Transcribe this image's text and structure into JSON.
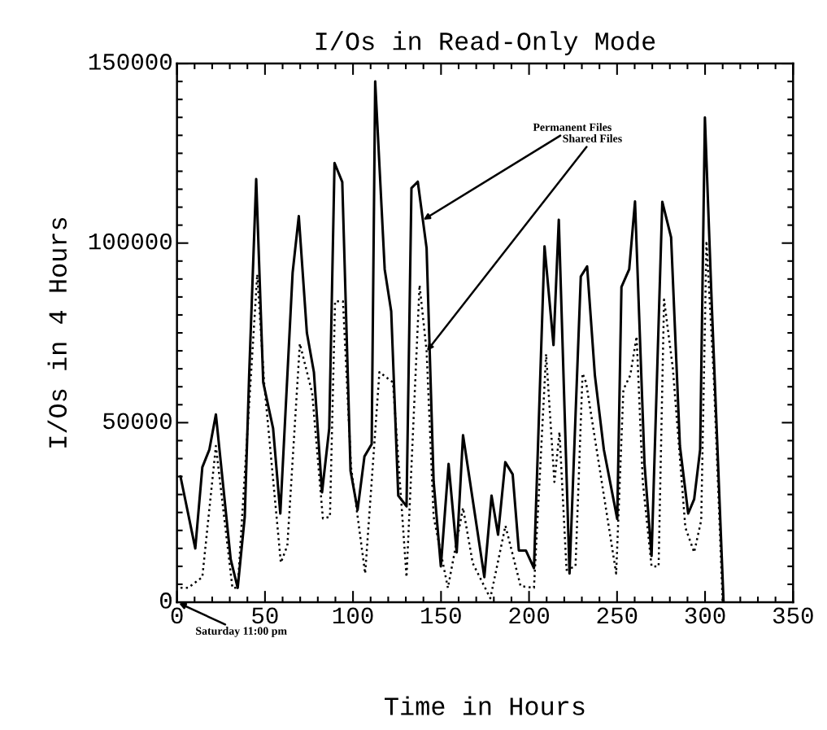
{
  "chart_data": {
    "type": "line",
    "title": "I/Os in Read-Only Mode",
    "xlabel": "Time in Hours",
    "ylabel": "I/Os in 4 Hours",
    "xlim": [
      0,
      350
    ],
    "xticks": [
      0,
      50,
      100,
      150,
      200,
      250,
      300,
      350
    ],
    "ylim": [
      0,
      150000
    ],
    "yticks": [
      0,
      50000,
      100000,
      150000
    ],
    "grid": false,
    "legend": false,
    "marker": "none",
    "series": [
      {
        "color": "#000000",
        "line_style": "solid",
        "x": [
          2,
          10.4,
          14.4,
          18.4,
          22.1,
          26.4,
          30.5,
          34.5,
          38.5,
          41,
          45,
          49,
          54.6,
          58.7,
          65.7,
          69.2,
          73.8,
          77.8,
          82.4,
          86.5,
          89.5,
          93.9,
          98.6,
          102.6,
          106.5,
          110.6,
          112.6,
          118,
          121.7,
          125.7,
          130.4,
          133.2,
          136.8,
          141.8,
          145.8,
          149.9,
          154.3,
          158.9,
          162.5,
          174.6,
          178.7,
          182.4,
          186.5,
          190.7,
          194.2,
          198.2,
          202.8,
          208.8,
          213.9,
          216.9,
          223,
          229.4,
          233,
          237.4,
          242.5,
          250.1,
          252.5,
          256.9,
          260.2,
          265.6,
          269.6,
          275.7,
          280.7,
          285.7,
          290.4,
          293.8,
          297.2,
          299.9,
          303.8,
          310.5
        ],
        "values": [
          35000,
          15000,
          37600,
          42500,
          52300,
          31700,
          12000,
          4000,
          23800,
          63200,
          117800,
          61200,
          48400,
          24700,
          91800,
          107500,
          75000,
          64000,
          30600,
          48400,
          122300,
          117000,
          36600,
          25700,
          40600,
          44000,
          145000,
          92700,
          81000,
          29700,
          26700,
          115300,
          117100,
          98600,
          33600,
          10000,
          38500,
          13900,
          46500,
          7000,
          29700,
          18800,
          39000,
          35600,
          14400,
          14400,
          9500,
          99100,
          71600,
          106500,
          8000,
          90700,
          93500,
          63200,
          42500,
          23200,
          87800,
          92700,
          111600,
          38500,
          12900,
          111500,
          101600,
          43500,
          24700,
          28700,
          42500,
          135000,
          82900,
          0
        ]
      },
      {
        "color": "#000000",
        "line_style": "dotted",
        "x": [
          2,
          6.3,
          14.4,
          22.1,
          31.5,
          34.5,
          45.6,
          49.5,
          59,
          62.7,
          69.8,
          76.8,
          82.9,
          86.9,
          89.8,
          94.3,
          98.9,
          106.9,
          115,
          120,
          122.7,
          130.4,
          137.8,
          141.8,
          145.8,
          153.9,
          162.5,
          168,
          178,
          186.6,
          195.2,
          202.8,
          209.7,
          214.4,
          217.3,
          221.3,
          226.4,
          230.4,
          232.4,
          249.5,
          253.6,
          257.5,
          261.1,
          264.6,
          269.6,
          273.6,
          276.7,
          281.7,
          288.8,
          293.8,
          297.8,
          300.8,
          304.9,
          310
        ],
        "values": [
          4000,
          4000,
          7000,
          43500,
          4000,
          4000,
          91300,
          61200,
          11000,
          15800,
          72000,
          58300,
          23300,
          23800,
          83800,
          83800,
          37600,
          8000,
          64100,
          62200,
          61200,
          7000,
          88300,
          70000,
          23800,
          4000,
          26300,
          10900,
          1100,
          21300,
          4500,
          4000,
          69100,
          33500,
          47400,
          9000,
          10000,
          63700,
          61200,
          8000,
          59200,
          63200,
          74000,
          33600,
          10000,
          10000,
          84300,
          65100,
          20800,
          13900,
          22800,
          100600,
          63200,
          0
        ]
      }
    ],
    "annotations": [
      {
        "text": "Permanent Files",
        "x": 140,
        "y": 106500
      },
      {
        "text": "Shared Files",
        "x": 142,
        "y": 70000
      },
      "Saturday 11:00 pm"
    ]
  }
}
